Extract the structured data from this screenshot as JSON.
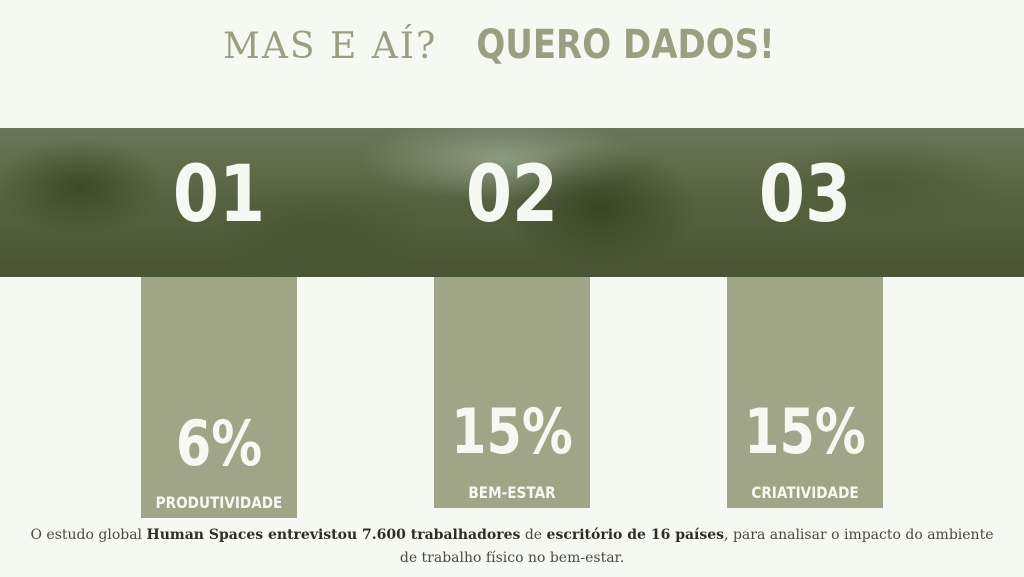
{
  "title": {
    "light": "MAS E AÍ?",
    "bold": "QUERO DADOS!"
  },
  "items": [
    {
      "number": "01",
      "value": "6%",
      "label": "PRODUTIVIDADE"
    },
    {
      "number": "02",
      "value": "15%",
      "label": "BEM-ESTAR"
    },
    {
      "number": "03",
      "value": "15%",
      "label": "CRIATIVIDADE"
    }
  ],
  "footer": {
    "t1": "O estudo global ",
    "b1": "Human Spaces entrevistou 7.600 trabalhadores",
    "t2": " de ",
    "b2": "escritório de 16 países",
    "t3": ", para analisar o impacto do ambiente de trabalho físico no bem-estar."
  },
  "colors": {
    "accent": "#a0a587",
    "background": "#f6f9f2",
    "title": "#9a9f82"
  }
}
